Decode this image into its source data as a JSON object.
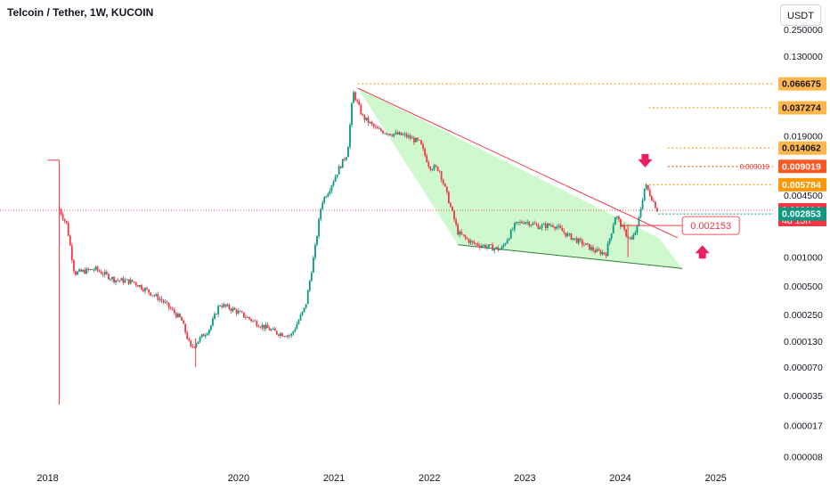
{
  "header": {
    "title": "Telcoin / Tether, 1W, KUCOIN",
    "currency": "USDT"
  },
  "chart_data": {
    "type": "candlestick",
    "scale": "log",
    "x_range": [
      2017.5,
      2025.6
    ],
    "y_range": [
      6.5e-06,
      0.33
    ],
    "x_ticks": [
      {
        "value": 2018,
        "label": "2018"
      },
      {
        "value": 2020,
        "label": "2020"
      },
      {
        "value": 2021,
        "label": "2021"
      },
      {
        "value": 2022,
        "label": "2022"
      },
      {
        "value": 2023,
        "label": "2023"
      },
      {
        "value": 2024,
        "label": "2024"
      },
      {
        "value": 2025,
        "label": "2025"
      }
    ],
    "y_ticks": [
      {
        "value": 0.25,
        "label": "0.250000"
      },
      {
        "value": 0.13,
        "label": "0.130000"
      },
      {
        "value": 0.019,
        "label": "0.019000"
      },
      {
        "value": 0.0045,
        "label": "0.004500"
      },
      {
        "value": 0.001,
        "label": "0.001000"
      },
      {
        "value": 0.0005,
        "label": "0.000500"
      },
      {
        "value": 0.00025,
        "label": "0.000250"
      },
      {
        "value": 0.00013,
        "label": "0.000130"
      },
      {
        "value": 7e-05,
        "label": "0.000070"
      },
      {
        "value": 3.5e-05,
        "label": "0.000035"
      },
      {
        "value": 1.7e-05,
        "label": "0.000017"
      },
      {
        "value": 8e-06,
        "label": "0.000008"
      }
    ],
    "price_path": [
      [
        2018.1,
        0.0105
      ],
      [
        2018.12,
        0.0032
      ],
      [
        2018.2,
        0.0022
      ],
      [
        2018.28,
        0.00068
      ],
      [
        2018.5,
        0.00075
      ],
      [
        2018.7,
        0.00058
      ],
      [
        2018.9,
        0.00055
      ],
      [
        2019.2,
        0.00035
      ],
      [
        2019.4,
        0.00022
      ],
      [
        2019.5,
        0.00011
      ],
      [
        2019.7,
        0.00018
      ],
      [
        2019.8,
        0.00032
      ],
      [
        2019.95,
        0.00028
      ],
      [
        2020.2,
        0.0002
      ],
      [
        2020.4,
        0.00016
      ],
      [
        2020.55,
        0.00015
      ],
      [
        2020.7,
        0.0003
      ],
      [
        2020.8,
        0.0012
      ],
      [
        2020.87,
        0.0038
      ],
      [
        2020.95,
        0.0052
      ],
      [
        2021.05,
        0.0085
      ],
      [
        2021.14,
        0.0125
      ],
      [
        2021.2,
        0.055
      ],
      [
        2021.3,
        0.03
      ],
      [
        2021.45,
        0.022
      ],
      [
        2021.6,
        0.02
      ],
      [
        2021.75,
        0.019
      ],
      [
        2021.9,
        0.016
      ],
      [
        2022.0,
        0.009
      ],
      [
        2022.1,
        0.0085
      ],
      [
        2022.2,
        0.004
      ],
      [
        2022.3,
        0.0018
      ],
      [
        2022.45,
        0.0014
      ],
      [
        2022.6,
        0.0013
      ],
      [
        2022.75,
        0.0012
      ],
      [
        2022.9,
        0.0022
      ],
      [
        2023.0,
        0.0024
      ],
      [
        2023.15,
        0.0021
      ],
      [
        2023.3,
        0.0022
      ],
      [
        2023.45,
        0.0017
      ],
      [
        2023.6,
        0.0014
      ],
      [
        2023.75,
        0.00115
      ],
      [
        2023.85,
        0.0011
      ],
      [
        2023.95,
        0.0028
      ],
      [
        2024.05,
        0.0018
      ],
      [
        2024.12,
        0.0015
      ],
      [
        2024.18,
        0.0021
      ],
      [
        2024.26,
        0.0058
      ],
      [
        2024.33,
        0.0042
      ],
      [
        2024.39,
        0.0031
      ]
    ],
    "spikes": [
      {
        "x": 2018.12,
        "high": 0.0105,
        "low": 2.8e-05,
        "color": "#f23645"
      },
      {
        "x": 2019.55,
        "high": 0.00014,
        "low": 7e-05,
        "color": "#f23645"
      },
      {
        "x": 2024.08,
        "high": 0.0022,
        "low": 0.001,
        "color": "#f23645"
      }
    ],
    "annotations": {
      "channel_top": [
        [
          2021.25,
          0.06
        ],
        [
          2024.6,
          0.0016
        ]
      ],
      "channel_bottom": [
        [
          2022.3,
          0.00135
        ],
        [
          2024.65,
          0.00076
        ]
      ],
      "channel_fill": "#c8f7c5",
      "channel_fill_polygon": [
        [
          2021.25,
          0.06
        ],
        [
          2024.4,
          0.0016
        ],
        [
          2024.65,
          0.00076
        ],
        [
          2022.3,
          0.00135
        ]
      ],
      "arrow_down_at": [
        2024.26,
        0.0098
      ],
      "arrow_up_at": [
        2024.86,
        0.0012
      ],
      "target_lines": [
        {
          "from": 2021.25,
          "value": 0.066675,
          "color": "#ff9800"
        },
        {
          "from": 2024.3,
          "value": 0.037274,
          "color": "#ff9800"
        },
        {
          "from": 2024.5,
          "value": 0.014062,
          "color": "#ff9800"
        },
        {
          "from": 2024.5,
          "value": 0.009019,
          "color": "#e65100",
          "note": "0.009019"
        },
        {
          "from": 2024.26,
          "value": 0.005784,
          "color": "#ff9800"
        }
      ],
      "current_price_line": {
        "value": 0.003114,
        "color": "#f23645"
      },
      "teal_line": {
        "value": 0.002853,
        "color": "#089981"
      },
      "callout": {
        "label": "0.002153",
        "value": 0.002153,
        "from": 2024.0,
        "to": 2024.65
      }
    },
    "price_labels": [
      {
        "value": 0.066675,
        "label": "0.066675",
        "bg": "#ffb74d",
        "fg": "#131722"
      },
      {
        "value": 0.037274,
        "label": "0.037274",
        "bg": "#ffb74d",
        "fg": "#131722"
      },
      {
        "value": 0.014062,
        "label": "0.014062",
        "bg": "#ffb74d",
        "fg": "#131722"
      },
      {
        "value": 0.009019,
        "label": "0.009019",
        "bg": "#ff5722",
        "fg": "#ffffff"
      },
      {
        "value": 0.005784,
        "label": "0.005784",
        "bg": "#ff9800",
        "fg": "#ffffff"
      },
      {
        "value": 0.003114,
        "label": "0.003114",
        "sublabel": "4d 15h",
        "bg": "#f23645",
        "fg": "#ffffff"
      },
      {
        "value": 0.002853,
        "label": "0.002853",
        "bg": "#089981",
        "fg": "#ffffff"
      }
    ]
  }
}
